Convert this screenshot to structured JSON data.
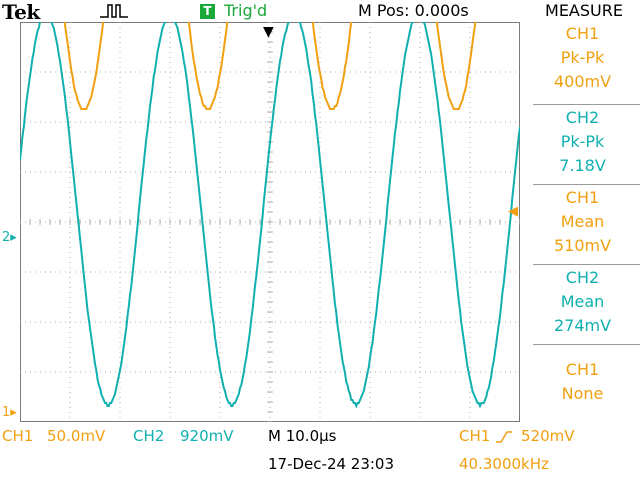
{
  "header": {
    "brand": "Tek",
    "acquisition_icon": "pulse-run-icon",
    "trigger_badge": "T",
    "trigger_status": "Trig'd",
    "horizontal_position": "M Pos: 0.000s",
    "measure_title": "MEASURE"
  },
  "measurements": [
    {
      "source": "CH1",
      "type": "Pk-Pk",
      "value": "400mV"
    },
    {
      "source": "CH2",
      "type": "Pk-Pk",
      "value": "7.18V"
    },
    {
      "source": "CH1",
      "type": "Mean",
      "value": "510mV"
    },
    {
      "source": "CH2",
      "type": "Mean",
      "value": "274mV"
    },
    {
      "source": "CH1",
      "type": "None",
      "value": ""
    }
  ],
  "markers": {
    "ch1_ground": "1",
    "ch2_ground": "2",
    "trigger_level_icon": "trigger-level-arrow-icon",
    "trigger_position_icon": "trigger-position-arrow-icon"
  },
  "footer": {
    "ch1_label": "CH1",
    "ch1_scale": "50.0mV",
    "ch2_label": "CH2",
    "ch2_scale": "920mV",
    "timebase": "M 10.0µs",
    "trigger_source": "CH1",
    "trigger_slope_icon": "rising-edge-icon",
    "trigger_level": "520mV",
    "date_time": "17-Dec-24 23:03",
    "frequency": "40.3000kHz"
  },
  "colors": {
    "ch1": "#f0a010",
    "ch2": "#10b0b0",
    "trigger_badge": "#19a83a",
    "grid": "#b0b0b0"
  },
  "chart_data": {
    "type": "line",
    "title": "",
    "xlabel": "",
    "ylabel": "",
    "x_unit": "µs",
    "xlim": [
      -50,
      50
    ],
    "grid": "on",
    "grid_divisions": {
      "x": 10,
      "y": 8
    },
    "series": [
      {
        "name": "CH1",
        "waveform": "sine",
        "frequency_khz": 40.3,
        "peak_to_peak_mv": 400,
        "mean_mv": 510,
        "volts_per_div_mv": 50.0,
        "phase_deg_at_center": 90
      },
      {
        "name": "CH2",
        "waveform": "sine",
        "frequency_khz": 40.3,
        "peak_to_peak_mv": 7180,
        "mean_mv": 274,
        "volts_per_div_mv": 920,
        "phase_deg_at_center": 20
      }
    ]
  }
}
